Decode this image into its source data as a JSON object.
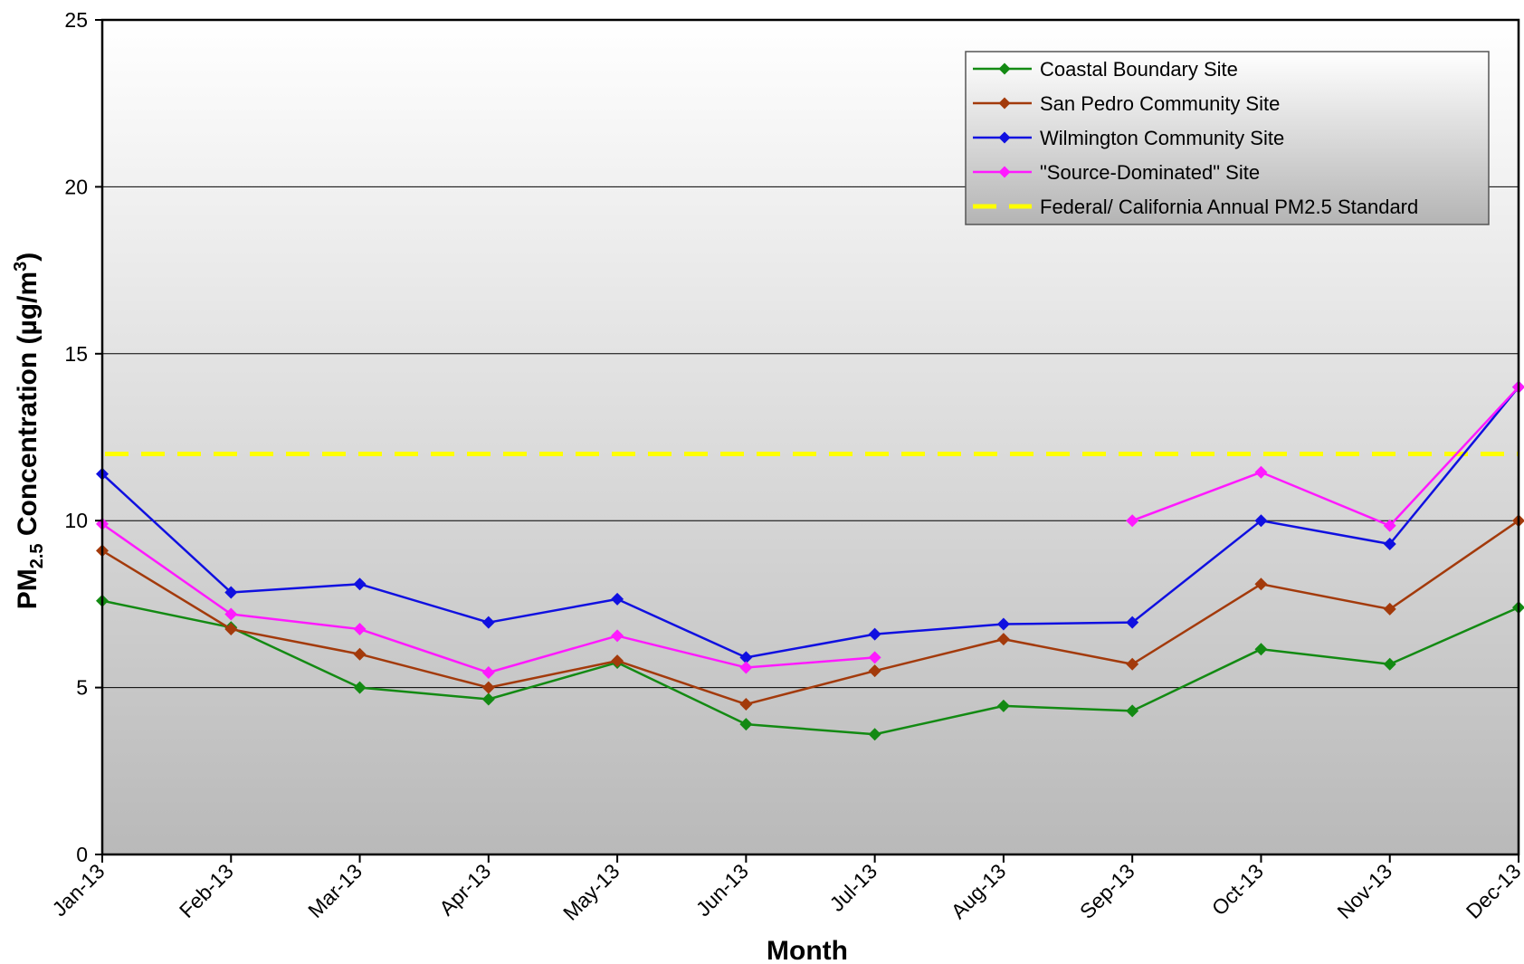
{
  "chart_data": {
    "type": "line",
    "title": "",
    "xlabel": "Month",
    "ylabel": {
      "prefix": "PM",
      "subscript": "2.5",
      "main": " Concentration (µg/m",
      "superscript": "3",
      "suffix": ")"
    },
    "categories": [
      "Jan-13",
      "Feb-13",
      "Mar-13",
      "Apr-13",
      "May-13",
      "Jun-13",
      "Jul-13",
      "Aug-13",
      "Sep-13",
      "Oct-13",
      "Nov-13",
      "Dec-13"
    ],
    "ylim": [
      0,
      25
    ],
    "yticks": [
      0,
      5,
      10,
      15,
      20,
      25
    ],
    "grid": true,
    "legend_position": "top-right",
    "series": [
      {
        "name": "Coastal Boundary Site",
        "color": "#138a13",
        "marker": "diamond",
        "values": [
          7.6,
          6.8,
          5.0,
          4.65,
          5.75,
          3.9,
          3.6,
          4.45,
          4.3,
          6.15,
          5.7,
          7.4
        ]
      },
      {
        "name": "San Pedro Community Site",
        "color": "#a33a0b",
        "marker": "diamond",
        "values": [
          9.1,
          6.75,
          6.0,
          5.0,
          5.8,
          4.5,
          5.5,
          6.45,
          5.7,
          8.1,
          7.35,
          10.0
        ]
      },
      {
        "name": "Wilmington Community Site",
        "color": "#1010e0",
        "marker": "diamond",
        "values": [
          11.4,
          7.85,
          8.1,
          6.95,
          7.65,
          5.9,
          6.6,
          6.9,
          6.95,
          10.0,
          9.3,
          14.0
        ]
      },
      {
        "name": "\"Source-Dominated\" Site",
        "color": "#ff1aff",
        "marker": "diamond",
        "values": [
          9.9,
          7.2,
          6.75,
          5.45,
          6.55,
          5.6,
          5.9,
          null,
          10.0,
          11.45,
          9.85,
          14.0
        ]
      },
      {
        "name": "Federal/ California Annual PM2.5 Standard",
        "color": "#ffff00",
        "style": "dashed",
        "marker": "none",
        "values": [
          12,
          12,
          12,
          12,
          12,
          12,
          12,
          12,
          12,
          12,
          12,
          12
        ]
      }
    ]
  }
}
